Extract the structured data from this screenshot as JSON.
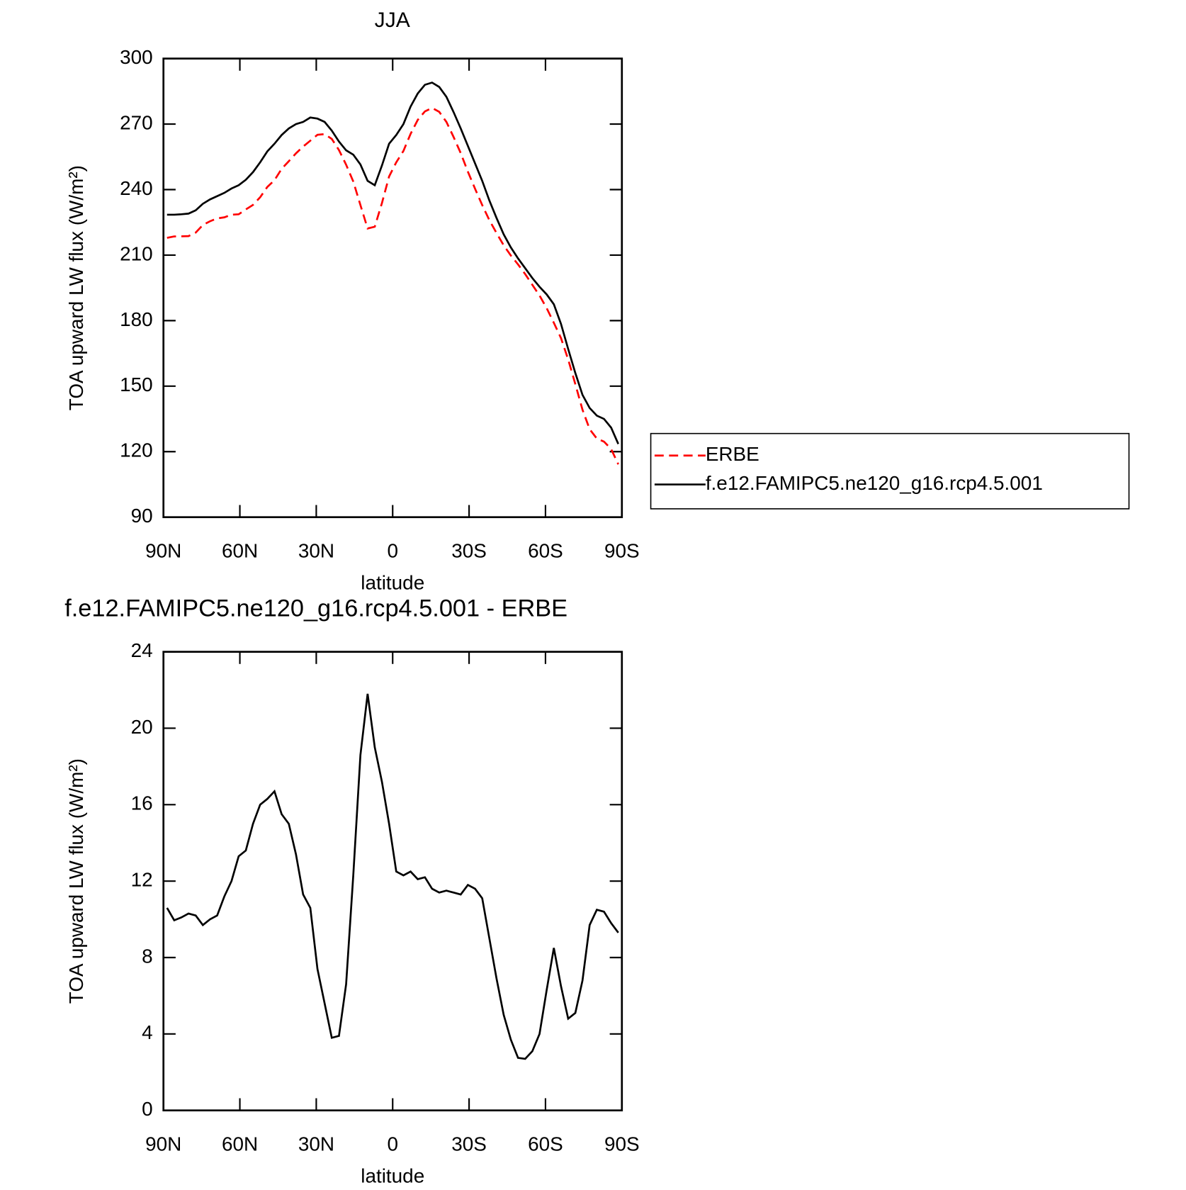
{
  "chart_data": [
    {
      "type": "line",
      "title": "JJA",
      "xlabel": "latitude",
      "ylabel": "TOA upward LW flux (W/m²)",
      "x": [
        88.59,
        85.78,
        82.97,
        80.16,
        77.34,
        74.53,
        71.72,
        68.91,
        66.09,
        63.28,
        60.47,
        57.66,
        54.84,
        52.03,
        49.22,
        46.41,
        43.59,
        40.78,
        37.97,
        35.16,
        32.34,
        29.53,
        26.72,
        23.91,
        21.09,
        18.28,
        15.47,
        12.66,
        9.84,
        7.03,
        4.22,
        1.41,
        -1.41,
        -4.22,
        -7.03,
        -9.84,
        -12.66,
        -15.47,
        -18.28,
        -21.09,
        -23.91,
        -26.72,
        -29.53,
        -32.34,
        -35.16,
        -37.97,
        -40.78,
        -43.59,
        -46.41,
        -49.22,
        -52.03,
        -54.84,
        -57.66,
        -60.47,
        -63.28,
        -66.09,
        -68.91,
        -71.72,
        -74.53,
        -77.34,
        -80.16,
        -82.97,
        -85.78,
        -88.59
      ],
      "series": [
        {
          "name": "ERBE",
          "color": "#ff0000",
          "line_style": "dashed",
          "values": [
            217.9,
            218.55,
            218.6,
            218.7,
            220.3,
            223.8,
            225.5,
            226.8,
            227.3,
            228.5,
            228.7,
            230.9,
            233,
            236.5,
            241.2,
            244.3,
            249.5,
            253,
            256.6,
            259.7,
            262.4,
            265.1,
            265.4,
            263.2,
            258.1,
            251.4,
            243.7,
            232.9,
            222.2,
            223,
            233.8,
            246,
            252.5,
            257.7,
            265.5,
            271.9,
            275.8,
            277.4,
            275.6,
            271,
            264.1,
            256.7,
            248.2,
            240.4,
            232.9,
            226,
            220.1,
            214.5,
            209.8,
            205.75,
            201.3,
            196.4,
            191.5,
            185.7,
            179,
            172,
            162.2,
            150.9,
            139.2,
            130.3,
            126,
            124.6,
            121.2,
            114.2
          ]
        },
        {
          "name": "f.e12.FAMIPC5.ne120_g16.rcp4.5.001",
          "color": "#000000",
          "line_style": "solid",
          "values": [
            228.5,
            228.5,
            228.7,
            229,
            230.5,
            233.5,
            235.5,
            237,
            238.5,
            240.5,
            242,
            244.5,
            248,
            252.5,
            257.5,
            261,
            265,
            268,
            270,
            271,
            273,
            272.5,
            271,
            267,
            262,
            258,
            256,
            251.5,
            244,
            242,
            251,
            261,
            265,
            270,
            278,
            284,
            288,
            289,
            287,
            282.5,
            275.5,
            268,
            260,
            252,
            244,
            235,
            227,
            219.5,
            213.5,
            208.5,
            204,
            199.5,
            195.5,
            192,
            187.5,
            178.5,
            167,
            156,
            146,
            140,
            136.5,
            135,
            131,
            123.5
          ]
        }
      ],
      "xlim": [
        90,
        -90
      ],
      "xticks": [
        {
          "value": 90,
          "label": "90N"
        },
        {
          "value": 60,
          "label": "60N"
        },
        {
          "value": 30,
          "label": "30N"
        },
        0,
        {
          "value": -30,
          "label": "30S"
        },
        {
          "value": -60,
          "label": "60S"
        },
        {
          "value": -90,
          "label": "90S"
        }
      ],
      "ylim": [
        90,
        300
      ],
      "yticks": [
        90,
        120,
        150,
        180,
        210,
        240,
        270,
        300
      ],
      "legend": "right"
    },
    {
      "type": "line",
      "title": "f.e12.FAMIPC5.ne120_g16.rcp4.5.001 - ERBE",
      "xlabel": "latitude",
      "ylabel": "TOA upward LW flux (W/m²)",
      "x": [
        88.59,
        85.78,
        82.97,
        80.16,
        77.34,
        74.53,
        71.72,
        68.91,
        66.09,
        63.28,
        60.47,
        57.66,
        54.84,
        52.03,
        49.22,
        46.41,
        43.59,
        40.78,
        37.97,
        35.16,
        32.34,
        29.53,
        26.72,
        23.91,
        21.09,
        18.28,
        15.47,
        12.66,
        9.84,
        7.03,
        4.22,
        1.41,
        -1.41,
        -4.22,
        -7.03,
        -9.84,
        -12.66,
        -15.47,
        -18.28,
        -21.09,
        -23.91,
        -26.72,
        -29.53,
        -32.34,
        -35.16,
        -37.97,
        -40.78,
        -43.59,
        -46.41,
        -49.22,
        -52.03,
        -54.84,
        -57.66,
        -60.47,
        -63.28,
        -66.09,
        -68.91,
        -71.72,
        -74.53,
        -77.34,
        -80.16,
        -82.97,
        -85.78,
        -88.59
      ],
      "series": [
        {
          "color": "#000000",
          "line_style": "solid",
          "values": [
            10.6,
            9.95,
            10.1,
            10.3,
            10.2,
            9.7,
            10.0,
            10.2,
            11.2,
            12.0,
            13.3,
            13.6,
            15.0,
            16.0,
            16.3,
            16.7,
            15.5,
            15.0,
            13.4,
            11.3,
            10.6,
            7.4,
            5.6,
            3.8,
            3.9,
            6.6,
            12.3,
            18.6,
            21.8,
            19.0,
            17.2,
            15.0,
            12.5,
            12.3,
            12.5,
            12.1,
            12.2,
            11.6,
            11.4,
            11.5,
            11.4,
            11.3,
            11.8,
            11.6,
            11.1,
            9.0,
            6.9,
            5.0,
            3.7,
            2.75,
            2.7,
            3.1,
            4.0,
            6.3,
            8.5,
            6.5,
            4.8,
            5.1,
            6.8,
            9.7,
            10.5,
            10.4,
            9.8,
            9.3
          ]
        }
      ],
      "xlim": [
        90,
        -90
      ],
      "xticks": [
        {
          "value": 90,
          "label": "90N"
        },
        {
          "value": 60,
          "label": "60N"
        },
        {
          "value": 30,
          "label": "30N"
        },
        0,
        {
          "value": -30,
          "label": "30S"
        },
        {
          "value": -60,
          "label": "60S"
        },
        {
          "value": -90,
          "label": "90S"
        }
      ],
      "ylim": [
        0,
        24
      ],
      "yticks": [
        0,
        4,
        8,
        12,
        16,
        20,
        24
      ]
    }
  ]
}
